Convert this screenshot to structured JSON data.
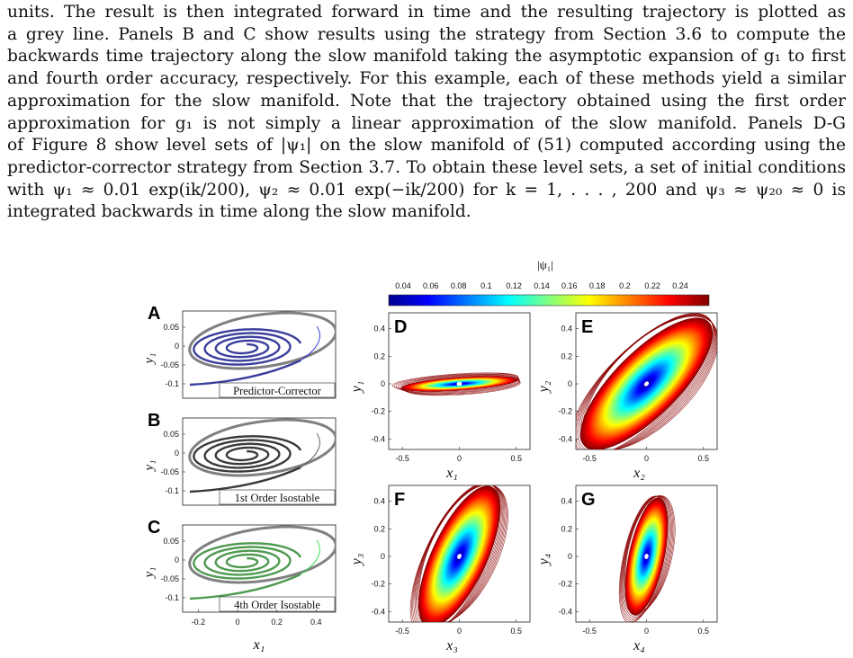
{
  "paragraph": [
    "units.  The result is then integrated forward in time and the resulting trajectory is plotted as",
    "a grey line.  Panels B and C show results using the strategy from Section 3.6 to compute the",
    "backwards time trajectory along the slow manifold taking the asymptotic expansion of g₁ to first",
    "and fourth order accuracy, respectively. For this example, each of these methods yield a similar",
    "approximation for the slow manifold.  Note that the trajectory obtained using the first order",
    "approximation for g₁ is not simply a linear approximation of the slow manifold.  Panels D-G",
    "of Figure 8 show level sets of |ψ₁| on the slow manifold of (51) computed according using the",
    "predictor-corrector strategy from Section 3.7. To obtain these level sets, a set of initial conditions",
    "with ψ₁ ≈ 0.01 exp(ik/200), ψ₂ ≈ 0.01 exp(−ik/200) for k = 1, . . . , 200 and ψ₃ ≈ ψ₂₀ ≈ 0 is",
    "integrated backwards in time along the slow manifold."
  ],
  "figure": {
    "colorbar": {
      "label": "|ψ₁|",
      "ticks": [
        "0.04",
        "0.06",
        "0.08",
        "0.1",
        "0.12",
        "0.14",
        "0.16",
        "0.18",
        "0.2",
        "0.22",
        "0.24"
      ],
      "colors": [
        "#00008f",
        "#0000ff",
        "#0080ff",
        "#00ffff",
        "#80ff80",
        "#ffff00",
        "#ff8000",
        "#ff0000",
        "#800000"
      ]
    },
    "left_panels": [
      {
        "letter": "A",
        "caption": "Predictor-Corrector",
        "ylabel": "y₁",
        "color": "#3a3f9c",
        "thin_color": "#2b2bd0"
      },
      {
        "letter": "B",
        "caption": "1st Order Isostable",
        "ylabel": "y₁",
        "color": "#3a3a3a",
        "thin_color": "#555555"
      },
      {
        "letter": "C",
        "caption": "4th Order Isostable",
        "ylabel": "y₁",
        "color": "#4f9a50",
        "thin_color": "#33dd44"
      }
    ],
    "left_yticks": [
      "0.05",
      "0",
      "-0.05",
      "-0.1"
    ],
    "left_xticks": [
      "-0.2",
      "0",
      "0.2",
      "0.4"
    ],
    "left_xlabel": "x₁",
    "right_panels": [
      {
        "letter": "D",
        "xlabel": "x₁",
        "ylabel": "y₁",
        "tilt": -4,
        "rx": 70,
        "ry": 8
      },
      {
        "letter": "E",
        "xlabel": "x₂",
        "ylabel": "y₂",
        "tilt": -45,
        "rx": 105,
        "ry": 40
      },
      {
        "letter": "F",
        "xlabel": "x₃",
        "ylabel": "y₃",
        "tilt": -65,
        "rx": 92,
        "ry": 34
      },
      {
        "letter": "G",
        "xlabel": "x₄",
        "ylabel": "y₄",
        "tilt": -78,
        "rx": 72,
        "ry": 22
      }
    ],
    "right_yticks": [
      "0.4",
      "0.2",
      "0",
      "-0.2",
      "-0.4"
    ],
    "right_xticks": [
      "-0.5",
      "0",
      "0.5"
    ]
  }
}
